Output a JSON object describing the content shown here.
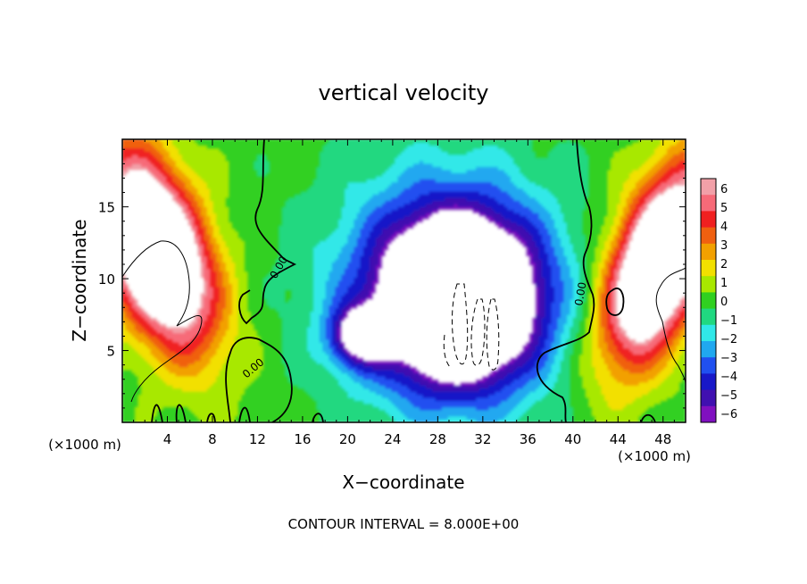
{
  "chart_data": {
    "type": "heatmap",
    "title": "vertical velocity",
    "xlabel": "X−coordinate",
    "ylabel": "Z−coordinate",
    "x_unit_left": "(×1000 m)",
    "x_unit_right": "(×1000 m)",
    "footer": "CONTOUR INTERVAL = 8.000E+00",
    "xlim": [
      0,
      50
    ],
    "ylim": [
      0,
      19.7
    ],
    "xticks": [
      4,
      8,
      12,
      16,
      20,
      24,
      28,
      32,
      36,
      40,
      44,
      48
    ],
    "xticklabels": [
      "4",
      "8",
      "12",
      "16",
      "20",
      "24",
      "28",
      "32",
      "36",
      "40",
      "44",
      "48"
    ],
    "yticks": [
      5,
      10,
      15
    ],
    "yticklabels": [
      "5",
      "10",
      "15"
    ],
    "contour_labels": [
      {
        "text": "0.00",
        "x": 13.5,
        "y": 10.0
      },
      {
        "text": "0.00",
        "x": 11.0,
        "y": 4.0
      },
      {
        "text": "0.00",
        "x": 41.0,
        "y": 8.3
      }
    ],
    "colorbar": {
      "ticks": [
        "6",
        "5",
        "4",
        "3",
        "2",
        "1",
        "0",
        "−1",
        "−2",
        "−3",
        "−4",
        "−5",
        "−6"
      ],
      "colors": [
        "#f2a0a8",
        "#f76a78",
        "#f02020",
        "#f06010",
        "#f2a000",
        "#f2e000",
        "#a8e800",
        "#30d020",
        "#20d880",
        "#30e8e8",
        "#20a8f0",
        "#2050f0",
        "#1818c8",
        "#4010b0",
        "#8010c0"
      ]
    },
    "field_features": [
      {
        "kind": "updraft",
        "x": 3.0,
        "z": 12.0,
        "sx": 4.5,
        "sz": 4.5,
        "amp": 12
      },
      {
        "kind": "updraft",
        "x": 47.5,
        "z": 11.0,
        "sx": 4.0,
        "sz": 4.5,
        "amp": 12
      },
      {
        "kind": "downdraft",
        "x": 30.0,
        "z": 8.5,
        "sx": 6.5,
        "sz": 5.5,
        "amp": 12
      },
      {
        "kind": "downdraft",
        "x": 21.0,
        "z": 6.0,
        "sx": 2.5,
        "sz": 2.0,
        "amp": 6
      }
    ]
  }
}
